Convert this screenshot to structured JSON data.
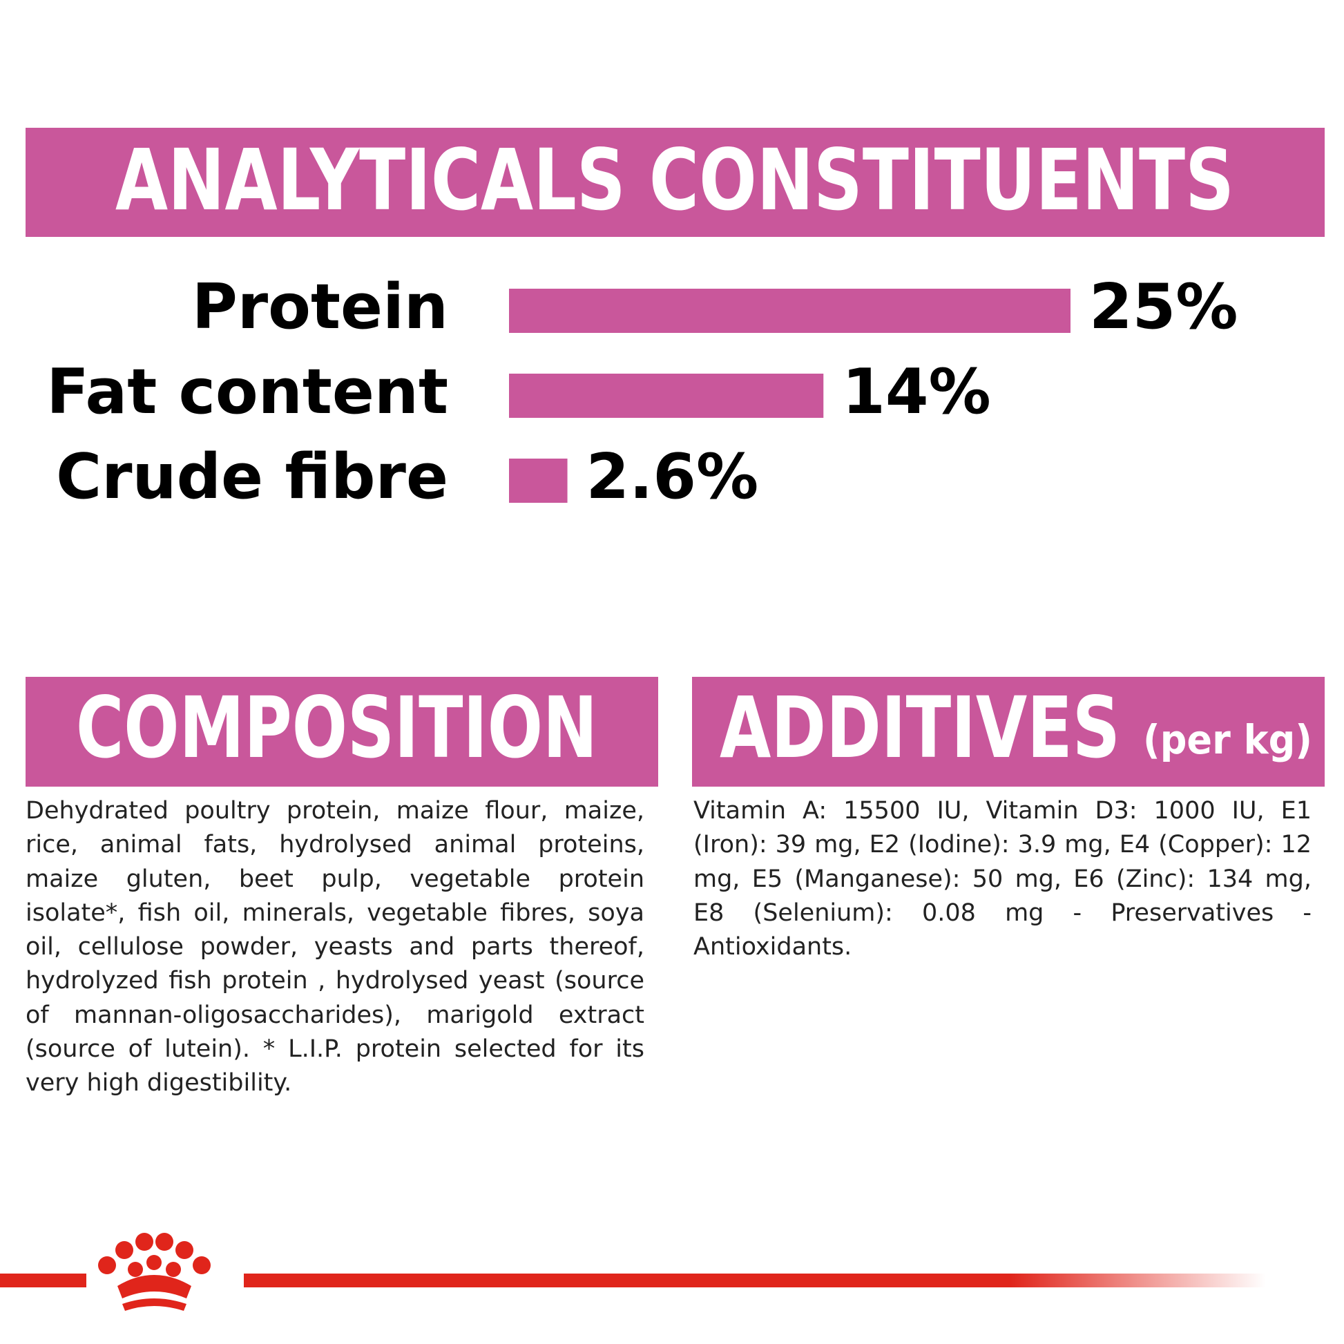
{
  "chart_data": {
    "type": "bar",
    "title": "ANALYTICALS CONSTITUENTS",
    "categories": [
      "Protein",
      "Fat content",
      "Crude fibre"
    ],
    "values": [
      25,
      14,
      2.6
    ],
    "value_labels": [
      "25%",
      "14%",
      "2.6%"
    ],
    "color": "#c9579b"
  },
  "composition": {
    "title": "COMPOSITION",
    "text": "Dehydrated poultry protein, maize flour, maize, rice, animal fats, hydrolysed animal proteins, maize gluten, beet pulp, vegetable protein isolate*, fish oil, minerals, vegetable fibres, soya oil, cellulose powder, yeasts and parts thereof, hydrolyzed fish protein , hydrolysed yeast (source of mannan-oligosaccharides), marigold extract (source of lutein). * L.I.P. protein selected for its very high digestibility."
  },
  "additives": {
    "title": "ADDITIVES",
    "unit": "(per kg)",
    "text": "Vitamin A: 15500 IU, Vitamin D3: 1000 IU, E1 (Iron): 39 mg, E2 (Iodine): 3.9 mg, E4 (Copper): 12 mg, E5 (Manganese): 50 mg, E6 (Zinc): 134 mg, E8 (Selenium): 0.08 mg - Preservatives - Antioxidants."
  }
}
